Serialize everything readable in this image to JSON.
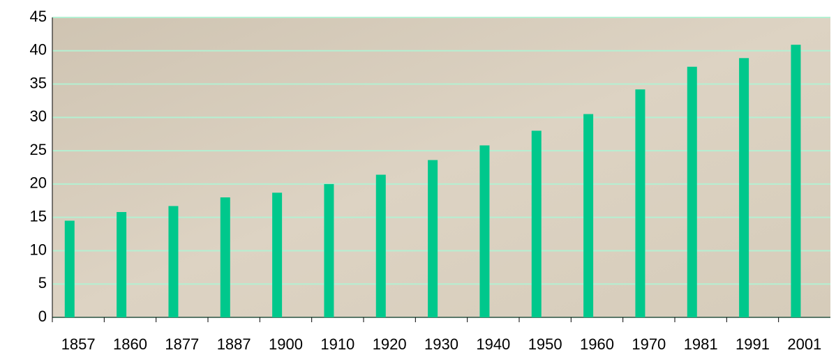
{
  "chart_data": {
    "type": "bar",
    "categories": [
      "1857",
      "1860",
      "1877",
      "1887",
      "1900",
      "1910",
      "1920",
      "1930",
      "1940",
      "1950",
      "1960",
      "1970",
      "1981",
      "1991",
      "2001"
    ],
    "values": [
      14.5,
      15.8,
      16.7,
      18,
      18.7,
      20,
      21.4,
      23.6,
      25.8,
      28,
      30.5,
      34.2,
      37.6,
      38.9,
      40.9
    ],
    "color": "#00c88c",
    "ylim": [
      0,
      45
    ],
    "yticks": [
      0,
      5,
      10,
      15,
      20,
      25,
      30,
      35,
      40,
      45
    ],
    "grid": true
  }
}
